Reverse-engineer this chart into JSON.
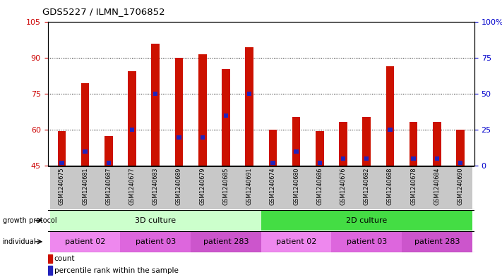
{
  "title": "GDS5227 / ILMN_1706852",
  "samples": [
    "GSM1240675",
    "GSM1240681",
    "GSM1240687",
    "GSM1240677",
    "GSM1240683",
    "GSM1240689",
    "GSM1240679",
    "GSM1240685",
    "GSM1240691",
    "GSM1240674",
    "GSM1240680",
    "GSM1240686",
    "GSM1240676",
    "GSM1240682",
    "GSM1240688",
    "GSM1240678",
    "GSM1240684",
    "GSM1240690"
  ],
  "counts": [
    59.5,
    79.5,
    57.5,
    84.5,
    96.0,
    90.0,
    91.5,
    85.5,
    94.5,
    60.0,
    65.5,
    59.5,
    63.5,
    65.5,
    86.5,
    63.5,
    63.5,
    60.0
  ],
  "percentiles": [
    2.0,
    10.0,
    2.0,
    25.0,
    50.0,
    20.0,
    20.0,
    35.0,
    50.0,
    2.0,
    10.0,
    2.0,
    5.0,
    5.0,
    25.0,
    5.0,
    5.0,
    2.0
  ],
  "ylim_left": [
    45,
    105
  ],
  "ylim_right": [
    0,
    100
  ],
  "yticks_left": [
    45,
    60,
    75,
    90,
    105
  ],
  "yticks_right": [
    0,
    25,
    50,
    75,
    100
  ],
  "bar_color": "#cc1100",
  "percentile_color": "#2222bb",
  "growth_protocol_row": {
    "label": "growth protocol",
    "groups": [
      {
        "name": "3D culture",
        "start": 0,
        "end": 9,
        "color": "#ccffcc"
      },
      {
        "name": "2D culture",
        "start": 9,
        "end": 18,
        "color": "#44dd44"
      }
    ]
  },
  "individual_row": {
    "label": "individual",
    "groups": [
      {
        "name": "patient 02",
        "start": 0,
        "end": 3,
        "color": "#ee88ee"
      },
      {
        "name": "patient 03",
        "start": 3,
        "end": 6,
        "color": "#dd66dd"
      },
      {
        "name": "patient 283",
        "start": 6,
        "end": 9,
        "color": "#cc55cc"
      },
      {
        "name": "patient 02",
        "start": 9,
        "end": 12,
        "color": "#ee88ee"
      },
      {
        "name": "patient 03",
        "start": 12,
        "end": 15,
        "color": "#dd66dd"
      },
      {
        "name": "patient 283",
        "start": 15,
        "end": 18,
        "color": "#cc55cc"
      }
    ]
  },
  "legend_count_color": "#cc1100",
  "legend_percentile_color": "#2222bb",
  "bar_width": 0.35,
  "yleft_color": "#cc0000",
  "yright_color": "#0000cc",
  "xtick_bg": "#c8c8c8"
}
